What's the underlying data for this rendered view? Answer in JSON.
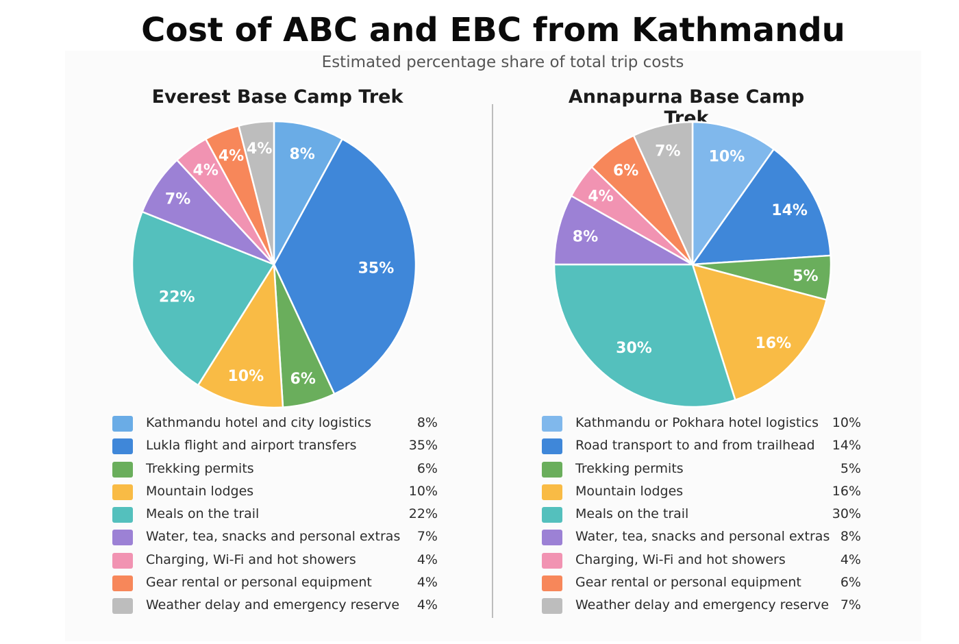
{
  "title": "Cost of ABC and EBC from Kathmandu",
  "subtitle": "Estimated percentage share of total trip costs",
  "chart_data": [
    {
      "type": "pie",
      "title": "Everest Base Camp Trek",
      "categories": [
        "Kathmandu hotel and city logistics",
        "Lukla flight and airport transfers",
        "Trekking permits",
        "Mountain lodges",
        "Meals on the trail",
        "Water, tea, snacks and personal extras",
        "Charging, Wi-Fi and hot showers",
        "Gear rental or personal equipment",
        "Weather delay and emergency reserve"
      ],
      "values": [
        8,
        35,
        6,
        10,
        22,
        7,
        4,
        4,
        4
      ],
      "value_labels": [
        "8%",
        "35%",
        "6%",
        "10%",
        "22%",
        "7%",
        "4%",
        "4%",
        "4%"
      ],
      "colors": [
        "#6aace6",
        "#3f87d9",
        "#6aae5c",
        "#f9bb45",
        "#54c0bd",
        "#9c81d5",
        "#f193b2",
        "#f7875a",
        "#bdbdbd"
      ],
      "legend_position": "bottom"
    },
    {
      "type": "pie",
      "title": "Annapurna Base Camp Trek",
      "categories": [
        "Kathmandu or Pokhara hotel logistics",
        "Road transport to and from trailhead",
        "Trekking permits",
        "Mountain lodges",
        "Meals on the trail",
        "Water, tea, snacks and personal extras",
        "Charging, Wi-Fi and hot showers",
        "Gear rental or personal equipment",
        "Weather delay and emergency reserve"
      ],
      "values": [
        10,
        14,
        5,
        16,
        30,
        8,
        4,
        6,
        7
      ],
      "value_labels": [
        "10%",
        "14%",
        "5%",
        "16%",
        "30%",
        "8%",
        "4%",
        "6%",
        "7%"
      ],
      "colors": [
        "#80b8ec",
        "#3f87d9",
        "#6aae5c",
        "#f9bb45",
        "#54c0bd",
        "#9c81d5",
        "#f193b2",
        "#f7875a",
        "#bdbdbd"
      ],
      "legend_position": "bottom"
    }
  ]
}
